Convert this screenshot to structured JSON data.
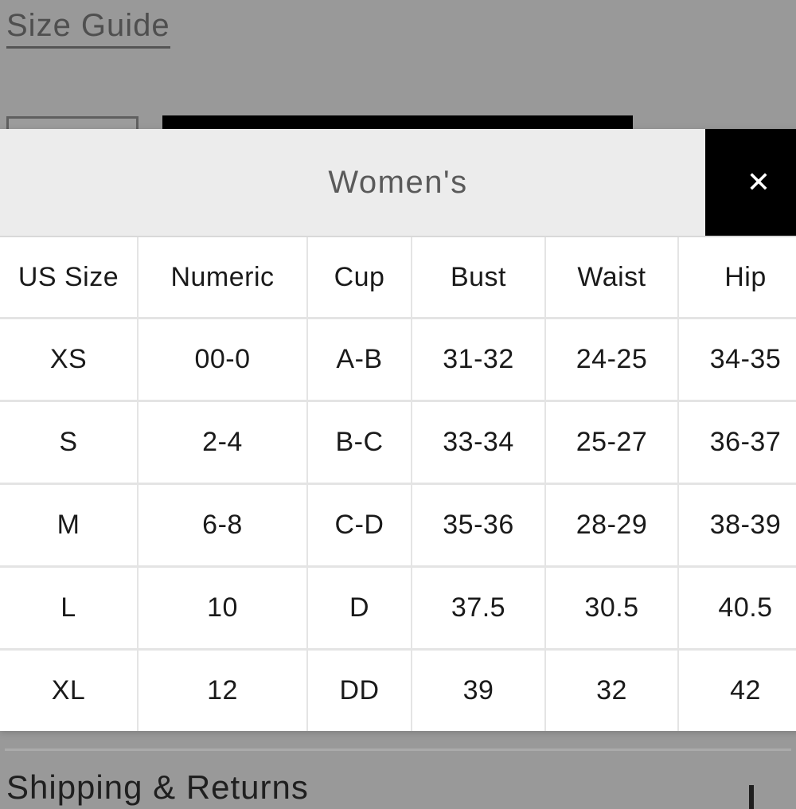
{
  "page": {
    "size_guide_link": "Size Guide",
    "shipping_returns_label": "Shipping & Returns"
  },
  "modal": {
    "title": "Women's",
    "close_icon": "✕"
  },
  "table": {
    "headers": [
      "US Size",
      "Numeric",
      "Cup",
      "Bust",
      "Waist",
      "Hip"
    ],
    "rows": [
      [
        "XS",
        "00-0",
        "A-B",
        "31-32",
        "24-25",
        "34-35"
      ],
      [
        "S",
        "2-4",
        "B-C",
        "33-34",
        "25-27",
        "36-37"
      ],
      [
        "M",
        "6-8",
        "C-D",
        "35-36",
        "28-29",
        "38-39"
      ],
      [
        "L",
        "10",
        "D",
        "37.5",
        "30.5",
        "40.5"
      ],
      [
        "XL",
        "12",
        "DD",
        "39",
        "32",
        "42"
      ]
    ]
  },
  "colors": {
    "overlay_background": "#999999",
    "modal_header_background": "#ececec",
    "close_button_background": "#000000",
    "close_button_foreground": "#ffffff",
    "table_gridline": "#e4e4e4",
    "table_text": "#1a1a1a",
    "dimmed_text": "#4f4f4f",
    "modal_title_text": "#5a5a5a"
  }
}
